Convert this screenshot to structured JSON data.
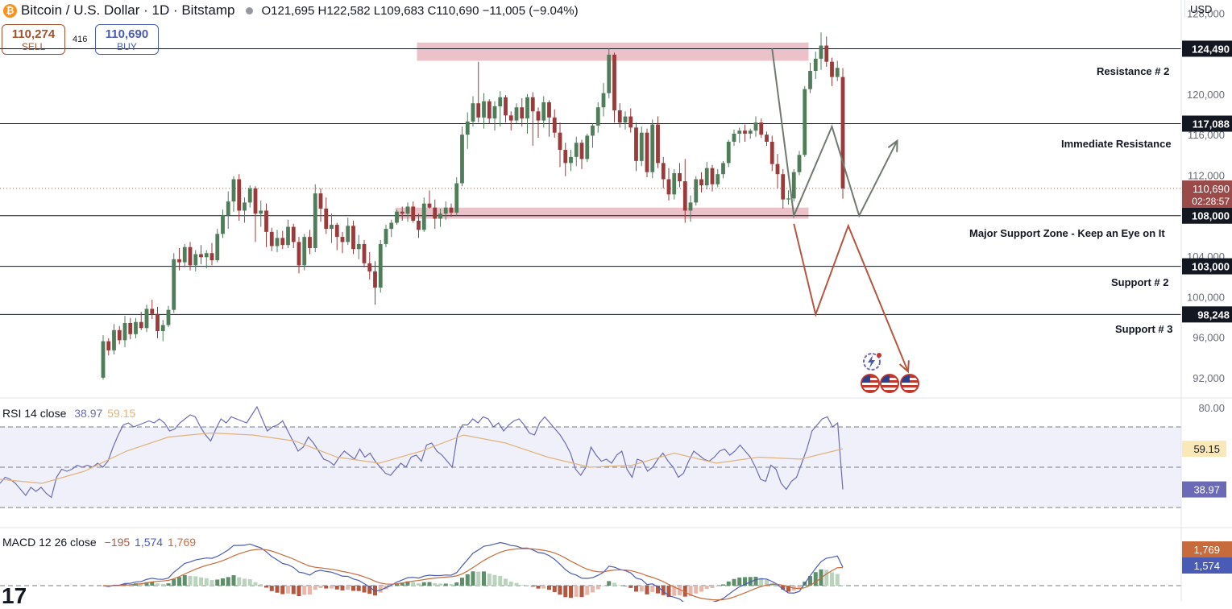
{
  "header": {
    "symbol_icon": "bitcoin-coin-icon",
    "symbol_glyph": "₿",
    "title": "Bitcoin / U.S. Dollar · 1D · Bitstamp",
    "ohlc": "O121,695  H122,582  L109,683  C110,690  −11,005 (−9.04%)"
  },
  "trade": {
    "sell_price": "110,274",
    "sell_label": "SELL",
    "spread": "416",
    "buy_price": "110,690",
    "buy_label": "BUY"
  },
  "currency": "USD",
  "price_axis": {
    "ticks": [
      "128,000",
      "120,000",
      "116,000",
      "112,000",
      "104,000",
      "100,000",
      "96,000",
      "92,000"
    ],
    "tick_values": [
      128000,
      120000,
      116000,
      112000,
      104000,
      100000,
      96000,
      92000
    ],
    "last_price": "110,690",
    "countdown": "02:28:57",
    "range": [
      90000,
      129300
    ]
  },
  "levels": [
    {
      "value": 124490,
      "label": "124,490",
      "name": "Resistance # 2"
    },
    {
      "value": 117088,
      "label": "117,088",
      "name": "Immediate Resistance"
    },
    {
      "value": 108000,
      "label": "108,000",
      "name": "Major Support Zone - Keep an Eye on It"
    },
    {
      "value": 103000,
      "label": "103,000",
      "name": "Support # 2"
    },
    {
      "value": 98248,
      "label": "98,248",
      "name": "Support # 3"
    }
  ],
  "zones": [
    {
      "from": 123300,
      "to": 125100,
      "start_bar": 58,
      "end_bar": 130
    },
    {
      "from": 107700,
      "to": 108800,
      "start_bar": 54,
      "end_bar": 130
    }
  ],
  "projections": {
    "bullish": {
      "points": [
        [
          123,
          124500
        ],
        [
          127,
          108000
        ],
        [
          134,
          116800
        ],
        [
          139,
          108000
        ],
        [
          146,
          115400
        ]
      ],
      "color": "#6f7a6f"
    },
    "bearish": {
      "points": [
        [
          127,
          107200
        ],
        [
          131,
          98248
        ],
        [
          137,
          107000
        ],
        [
          148,
          92600
        ]
      ],
      "color": "#b5563f"
    }
  },
  "colors": {
    "up": "#4f7d5a",
    "down": "#9b3a3a",
    "zone": "#e8b7bf",
    "rsi": "#6b6bb5",
    "rsi_ma": "#e0b37a",
    "macd": "#4a5bb5",
    "signal": "#c86b3c"
  },
  "rsi": {
    "label": "RSI 14 close",
    "value": "38.97",
    "ma_value": "59.15",
    "range": [
      20,
      80
    ],
    "scale_label": "80.00",
    "levels": [
      70,
      50,
      30
    ]
  },
  "macd": {
    "label": "MACD 12 26 close",
    "hist": "−195",
    "macd": "1,574",
    "signal": "1,769"
  },
  "chart_data": {
    "type": "candlestick",
    "title": "Bitcoin / U.S. Dollar · 1D · Bitstamp",
    "ylim": [
      90000,
      129300
    ],
    "candles": [
      [
        92000,
        96200,
        91800,
        95600
      ],
      [
        95600,
        95900,
        94200,
        94700
      ],
      [
        94700,
        97300,
        94300,
        96700
      ],
      [
        96700,
        97100,
        95300,
        95700
      ],
      [
        95700,
        98100,
        95000,
        97400
      ],
      [
        97400,
        97900,
        95800,
        96300
      ],
      [
        96300,
        97900,
        95900,
        97500
      ],
      [
        97500,
        98500,
        96700,
        96900
      ],
      [
        96900,
        99200,
        96500,
        98800
      ],
      [
        98800,
        99700,
        97800,
        98300
      ],
      [
        98300,
        99000,
        95900,
        96600
      ],
      [
        96600,
        97700,
        95600,
        97200
      ],
      [
        97200,
        99100,
        97000,
        98700
      ],
      [
        98700,
        104300,
        98400,
        103700
      ],
      [
        103700,
        104800,
        102600,
        103400
      ],
      [
        103400,
        105200,
        102900,
        104900
      ],
      [
        104900,
        105400,
        102600,
        103100
      ],
      [
        103100,
        104600,
        102500,
        104200
      ],
      [
        104200,
        105100,
        103200,
        103900
      ],
      [
        103900,
        104600,
        102800,
        104300
      ],
      [
        104300,
        105300,
        103100,
        103600
      ],
      [
        103600,
        106700,
        103400,
        106200
      ],
      [
        106200,
        108600,
        105800,
        108000
      ],
      [
        108000,
        110400,
        106700,
        109400
      ],
      [
        109400,
        111900,
        108400,
        111600
      ],
      [
        111600,
        112100,
        107500,
        108500
      ],
      [
        108500,
        109800,
        107300,
        109300
      ],
      [
        109300,
        111000,
        108800,
        110700
      ],
      [
        110700,
        110900,
        105400,
        108200
      ],
      [
        108200,
        109500,
        106900,
        108500
      ],
      [
        108500,
        109200,
        104900,
        106400
      ],
      [
        106400,
        106800,
        104500,
        105000
      ],
      [
        105000,
        106600,
        104400,
        105800
      ],
      [
        105800,
        106500,
        104700,
        105100
      ],
      [
        105100,
        107600,
        104800,
        106900
      ],
      [
        106900,
        107200,
        104800,
        105400
      ],
      [
        105400,
        105900,
        102300,
        103100
      ],
      [
        103100,
        106200,
        102600,
        105900
      ],
      [
        105900,
        106600,
        104200,
        104800
      ],
      [
        104800,
        111100,
        104400,
        110200
      ],
      [
        110200,
        110700,
        107400,
        108700
      ],
      [
        108700,
        109800,
        106200,
        106700
      ],
      [
        106700,
        108200,
        105300,
        107100
      ],
      [
        107100,
        107300,
        104600,
        105900
      ],
      [
        105900,
        106400,
        104300,
        105400
      ],
      [
        105400,
        107800,
        105100,
        107000
      ],
      [
        107000,
        107500,
        104200,
        104700
      ],
      [
        104700,
        106100,
        103700,
        105200
      ],
      [
        105200,
        105600,
        102900,
        103300
      ],
      [
        103300,
        104400,
        101700,
        102500
      ],
      [
        102500,
        103500,
        99200,
        100900
      ],
      [
        100900,
        105600,
        100400,
        105200
      ],
      [
        105200,
        107100,
        104900,
        106700
      ],
      [
        106700,
        107600,
        105900,
        107300
      ],
      [
        107300,
        108600,
        107100,
        108400
      ],
      [
        108400,
        108900,
        107500,
        108200
      ],
      [
        108200,
        109300,
        107400,
        108900
      ],
      [
        108900,
        109400,
        107300,
        107500
      ],
      [
        107500,
        108200,
        105800,
        106600
      ],
      [
        106600,
        109800,
        106400,
        109200
      ],
      [
        109200,
        110500,
        108700,
        108800
      ],
      [
        108800,
        109600,
        106700,
        107700
      ],
      [
        107700,
        108700,
        106900,
        108200
      ],
      [
        108200,
        109400,
        107600,
        108800
      ],
      [
        108800,
        109200,
        107900,
        108300
      ],
      [
        108300,
        111800,
        108000,
        111200
      ],
      [
        111200,
        116800,
        110900,
        116000
      ],
      [
        116000,
        118200,
        114600,
        117300
      ],
      [
        117300,
        119800,
        116800,
        119100
      ],
      [
        119100,
        123200,
        117200,
        117700
      ],
      [
        117700,
        120100,
        116600,
        119300
      ],
      [
        119300,
        119500,
        117100,
        117600
      ],
      [
        117600,
        119300,
        116400,
        118800
      ],
      [
        118800,
        120300,
        116800,
        119700
      ],
      [
        119700,
        119900,
        117200,
        117900
      ],
      [
        117900,
        118300,
        116400,
        117400
      ],
      [
        117400,
        119100,
        117100,
        118700
      ],
      [
        118700,
        119600,
        116800,
        117600
      ],
      [
        117600,
        120000,
        116100,
        119700
      ],
      [
        119700,
        120200,
        114900,
        118300
      ],
      [
        118300,
        118700,
        115700,
        117400
      ],
      [
        117400,
        119800,
        116700,
        119200
      ],
      [
        119200,
        119400,
        115800,
        117700
      ],
      [
        117700,
        118500,
        115700,
        116200
      ],
      [
        116200,
        117200,
        112800,
        114500
      ],
      [
        114500,
        115200,
        111900,
        113200
      ],
      [
        113200,
        114500,
        112400,
        113800
      ],
      [
        113800,
        115800,
        112900,
        115200
      ],
      [
        115200,
        115500,
        112600,
        113600
      ],
      [
        113600,
        116100,
        113300,
        115900
      ],
      [
        115900,
        117100,
        114700,
        116900
      ],
      [
        116900,
        119200,
        116200,
        118700
      ],
      [
        118700,
        121100,
        117800,
        120100
      ],
      [
        120100,
        124500,
        119600,
        123900
      ],
      [
        123900,
        124100,
        117200,
        118400
      ],
      [
        118400,
        119100,
        116700,
        117200
      ],
      [
        117200,
        118300,
        116500,
        117800
      ],
      [
        117800,
        118600,
        116200,
        116700
      ],
      [
        116700,
        117200,
        112400,
        113400
      ],
      [
        113400,
        116800,
        112900,
        116200
      ],
      [
        116200,
        116600,
        111800,
        112300
      ],
      [
        112300,
        117500,
        111700,
        117000
      ],
      [
        117000,
        117800,
        112700,
        113200
      ],
      [
        113200,
        113800,
        110700,
        111600
      ],
      [
        111600,
        112700,
        109500,
        110100
      ],
      [
        110100,
        112600,
        109600,
        112200
      ],
      [
        112200,
        113200,
        110800,
        111400
      ],
      [
        111400,
        113600,
        107300,
        108500
      ],
      [
        108500,
        110000,
        107400,
        109300
      ],
      [
        109300,
        111900,
        109000,
        111600
      ],
      [
        111600,
        112300,
        110300,
        111000
      ],
      [
        111000,
        113300,
        110600,
        112700
      ],
      [
        112700,
        113000,
        110400,
        111100
      ],
      [
        111100,
        112600,
        110800,
        112100
      ],
      [
        112100,
        113400,
        111700,
        113200
      ],
      [
        113200,
        115500,
        112800,
        115300
      ],
      [
        115300,
        116500,
        114900,
        116100
      ],
      [
        116100,
        116700,
        115200,
        116400
      ],
      [
        116400,
        117000,
        115300,
        116100
      ],
      [
        116100,
        116600,
        115600,
        116400
      ],
      [
        116400,
        117800,
        115800,
        117200
      ],
      [
        117200,
        117600,
        115700,
        116000
      ],
      [
        116000,
        116300,
        114900,
        115300
      ],
      [
        115300,
        115900,
        112400,
        113100
      ],
      [
        113100,
        114100,
        110700,
        112100
      ],
      [
        112100,
        112600,
        108700,
        109600
      ],
      [
        109600,
        110500,
        109100,
        109700
      ],
      [
        109700,
        112600,
        109400,
        112300
      ],
      [
        112300,
        114400,
        112000,
        114000
      ],
      [
        114000,
        120800,
        113800,
        120500
      ],
      [
        120500,
        123100,
        120100,
        122300
      ],
      [
        122300,
        124200,
        121500,
        123500
      ],
      [
        123500,
        126100,
        122400,
        124800
      ],
      [
        124800,
        125700,
        122700,
        123200
      ],
      [
        123200,
        123600,
        120800,
        121700
      ],
      [
        121700,
        123300,
        121300,
        122600
      ],
      [
        121695,
        122582,
        109683,
        110690
      ]
    ],
    "rsi": [
      42,
      45,
      44,
      42,
      39,
      36,
      40,
      38,
      40,
      37,
      35,
      45,
      49,
      48,
      49,
      51,
      50,
      51,
      50,
      52,
      50,
      53,
      60,
      66,
      71,
      72,
      70,
      71,
      72,
      73,
      72,
      74,
      72,
      68,
      69,
      72,
      74,
      76,
      75,
      70,
      66,
      63,
      69,
      74,
      72,
      75,
      74,
      73,
      72,
      76,
      80,
      74,
      68,
      70,
      71,
      73,
      68,
      63,
      58,
      60,
      65,
      62,
      58,
      54,
      53,
      51,
      55,
      58,
      56,
      54,
      59,
      55,
      57,
      53,
      50,
      47,
      46,
      49,
      52,
      50,
      55,
      56,
      53,
      61,
      62,
      58,
      56,
      53,
      50,
      66,
      71,
      71,
      74,
      72,
      75,
      74,
      70,
      72,
      68,
      71,
      73,
      74,
      71,
      67,
      66,
      72,
      75,
      72,
      69,
      66,
      62,
      57,
      49,
      46,
      50,
      60,
      56,
      53,
      54,
      52,
      56,
      58,
      49,
      45,
      54,
      53,
      48,
      50,
      54,
      57,
      53,
      50,
      45,
      47,
      53,
      58,
      56,
      54,
      53,
      55,
      58,
      59,
      56,
      58,
      61,
      58,
      55,
      50,
      44,
      43,
      51,
      49,
      42,
      39,
      43,
      45,
      52,
      59,
      68,
      71,
      74,
      75,
      70,
      72,
      38.97
    ],
    "rsi_ma_anchor": [
      [
        0,
        44
      ],
      [
        10,
        42
      ],
      [
        20,
        48
      ],
      [
        30,
        58
      ],
      [
        40,
        65
      ],
      [
        50,
        67
      ],
      [
        60,
        66
      ],
      [
        70,
        63
      ],
      [
        80,
        55
      ],
      [
        90,
        52
      ],
      [
        100,
        58
      ],
      [
        110,
        66
      ],
      [
        120,
        62
      ],
      [
        130,
        55
      ],
      [
        140,
        50
      ],
      [
        150,
        51
      ],
      [
        160,
        57
      ],
      [
        170,
        52
      ],
      [
        180,
        55
      ],
      [
        190,
        54
      ],
      [
        200,
        59.15
      ]
    ]
  }
}
